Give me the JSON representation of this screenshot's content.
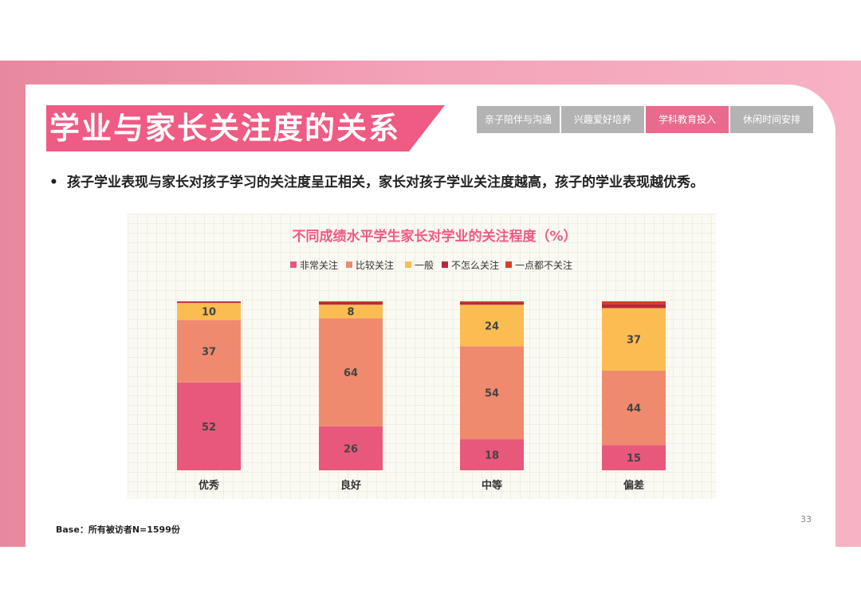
{
  "slide": {
    "title": "学业与家长关注度的关系",
    "tabs": [
      "亲子陪伴与沟通",
      "兴趣爱好培养",
      "学科教育投入",
      "休闲时间安排"
    ],
    "active_tab": 2,
    "bullet": "孩子学业表现与家长对孩子学习的关注度呈正相关，家长对孩子学业关注度越高，孩子的学业表现越优秀。",
    "base_note": "Base：所有被访者N=1599份",
    "page_number": "33"
  },
  "colors": {
    "accent": "#ef5b82",
    "very_concerned": "#e8587c",
    "fairly_concerned": "#ef8a6e",
    "average": "#fbbd52",
    "not_very_concerned": "#b9283b",
    "not_at_all": "#d6402a"
  },
  "chart_data": {
    "type": "bar",
    "stacked": true,
    "title": "不同成绩水平学生家长对学业的关注程度（%）",
    "legend_position": "top",
    "categories": [
      "优秀",
      "良好",
      "中等",
      "偏差"
    ],
    "series": [
      {
        "name": "非常关注",
        "values": [
          52,
          26,
          18,
          15
        ],
        "color": "#e8587c"
      },
      {
        "name": "比较关注",
        "values": [
          37,
          64,
          54,
          44
        ],
        "color": "#ef8a6e"
      },
      {
        "name": "一般",
        "values": [
          10,
          8,
          24,
          37
        ],
        "color": "#fbbd52"
      },
      {
        "name": "不怎么关注",
        "values": [
          0.5,
          1.5,
          1.5,
          2.5
        ],
        "color": "#b9283b"
      },
      {
        "name": "一点都不关注",
        "values": [
          0.5,
          0.5,
          0.5,
          1.5
        ],
        "color": "#d6402a"
      }
    ],
    "labeled_series": [
      0,
      1,
      2
    ],
    "ylim": [
      0,
      100
    ]
  }
}
